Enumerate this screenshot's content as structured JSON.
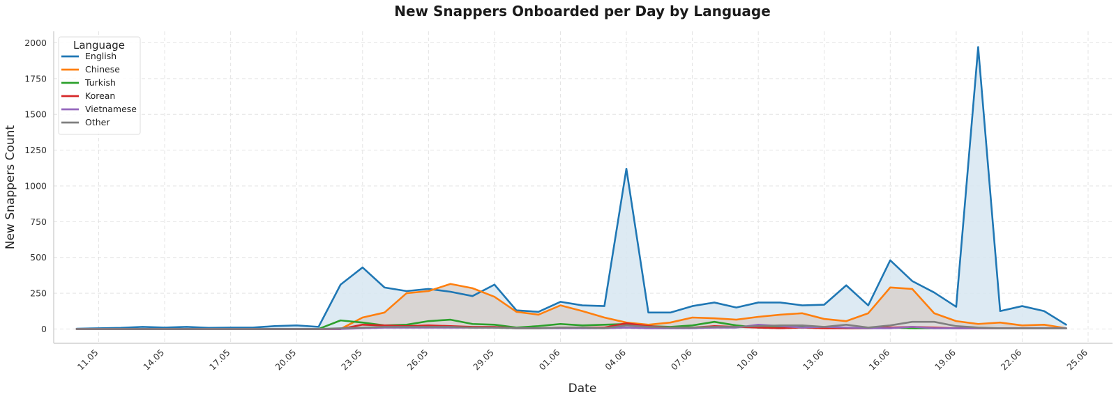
{
  "chart_data": {
    "type": "line",
    "title": "New Snappers Onboarded per Day by Language",
    "xlabel": "Date",
    "ylabel": "New Snappers Count",
    "legend_title": "Language",
    "legend_position": "top-left",
    "grid": true,
    "fill_under_series": [
      "English",
      "Chinese",
      "Other"
    ],
    "ylim": [
      -100,
      2080
    ],
    "yticks": [
      0,
      250,
      500,
      750,
      1000,
      1250,
      1500,
      1750,
      2000
    ],
    "x_start": "2025-05-10",
    "x_end": "2025-06-25",
    "xticks": [
      "11.05",
      "14.05",
      "17.05",
      "20.05",
      "23.05",
      "26.05",
      "29.05",
      "01.06",
      "04.06",
      "07.06",
      "10.06",
      "13.06",
      "16.06",
      "19.06",
      "22.06",
      "25.06"
    ],
    "x": [
      "10.05",
      "11.05",
      "12.05",
      "13.05",
      "14.05",
      "15.05",
      "16.05",
      "17.05",
      "18.05",
      "19.05",
      "20.05",
      "21.05",
      "22.05",
      "23.05",
      "24.05",
      "25.05",
      "26.05",
      "27.05",
      "28.05",
      "29.05",
      "30.05",
      "31.05",
      "01.06",
      "02.06",
      "03.06",
      "04.06",
      "05.06",
      "06.06",
      "07.06",
      "08.06",
      "09.06",
      "10.06",
      "11.06",
      "12.06",
      "13.06",
      "14.06",
      "15.06",
      "16.06",
      "17.06",
      "18.06",
      "19.06",
      "20.06",
      "21.06",
      "22.06",
      "23.06",
      "24.06"
    ],
    "series": [
      {
        "name": "English",
        "color": "#1f77b4",
        "fill": "#d7e6f1",
        "values": [
          2,
          5,
          8,
          15,
          10,
          15,
          8,
          10,
          10,
          20,
          25,
          15,
          310,
          430,
          290,
          265,
          280,
          260,
          230,
          310,
          130,
          120,
          190,
          165,
          160,
          1120,
          115,
          115,
          160,
          185,
          150,
          185,
          185,
          165,
          170,
          305,
          165,
          480,
          335,
          255,
          155,
          1970,
          125,
          160,
          125,
          30
        ]
      },
      {
        "name": "Chinese",
        "color": "#ff7f0e",
        "fill": "#d8d1cc",
        "values": [
          0,
          0,
          0,
          0,
          0,
          0,
          0,
          0,
          0,
          0,
          0,
          0,
          0,
          80,
          115,
          250,
          265,
          315,
          285,
          225,
          120,
          100,
          165,
          125,
          80,
          45,
          30,
          45,
          80,
          75,
          65,
          85,
          100,
          110,
          70,
          55,
          110,
          290,
          280,
          110,
          55,
          35,
          45,
          25,
          30,
          5
        ]
      },
      {
        "name": "Turkish",
        "color": "#2ca02c",
        "values": [
          0,
          0,
          0,
          0,
          0,
          0,
          0,
          0,
          0,
          0,
          0,
          0,
          60,
          45,
          25,
          30,
          55,
          65,
          35,
          30,
          10,
          20,
          35,
          25,
          30,
          35,
          20,
          15,
          25,
          50,
          25,
          10,
          10,
          15,
          10,
          5,
          5,
          10,
          5,
          5,
          5,
          5,
          5,
          5,
          5,
          5
        ]
      },
      {
        "name": "Korean",
        "color": "#d62728",
        "values": [
          0,
          0,
          0,
          0,
          0,
          0,
          0,
          0,
          0,
          0,
          0,
          0,
          0,
          30,
          25,
          20,
          25,
          20,
          15,
          15,
          5,
          5,
          10,
          10,
          10,
          40,
          20,
          10,
          10,
          20,
          15,
          10,
          5,
          10,
          5,
          5,
          5,
          10,
          15,
          10,
          5,
          5,
          5,
          5,
          5,
          5
        ]
      },
      {
        "name": "Vietnamese",
        "color": "#9467bd",
        "values": [
          0,
          0,
          0,
          0,
          0,
          0,
          0,
          0,
          0,
          0,
          0,
          0,
          0,
          5,
          10,
          10,
          10,
          10,
          10,
          10,
          5,
          5,
          5,
          5,
          5,
          10,
          5,
          5,
          5,
          10,
          10,
          30,
          20,
          10,
          15,
          10,
          5,
          5,
          15,
          5,
          5,
          5,
          5,
          5,
          5,
          5
        ]
      },
      {
        "name": "Other",
        "color": "#7f7f7f",
        "fill": "#dcdcdc",
        "values": [
          0,
          0,
          0,
          0,
          0,
          0,
          0,
          0,
          0,
          0,
          0,
          0,
          5,
          10,
          15,
          15,
          15,
          15,
          10,
          10,
          5,
          5,
          10,
          10,
          5,
          25,
          15,
          10,
          10,
          15,
          15,
          20,
          25,
          25,
          15,
          30,
          10,
          25,
          50,
          50,
          20,
          10,
          5,
          5,
          5,
          5
        ]
      }
    ]
  }
}
